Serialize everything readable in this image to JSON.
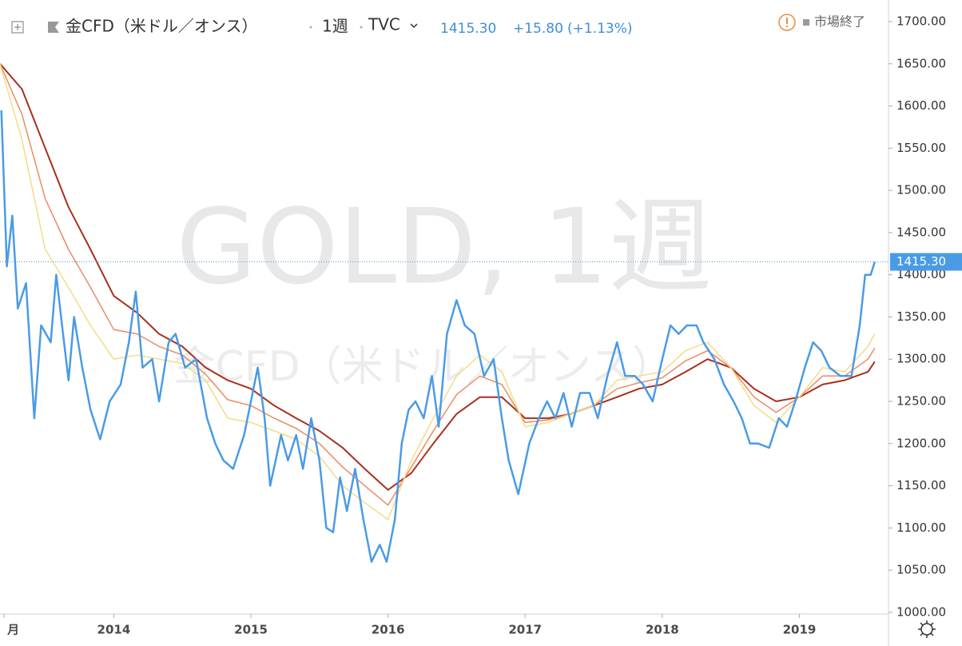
{
  "header": {
    "symbol": "金CFD（米ドル／オンス）",
    "interval": "1週",
    "exchange": "TVC",
    "price": "1415.30",
    "change": "+15.80",
    "change_pct": "(+1.13%)",
    "status": "市場終了"
  },
  "watermark": {
    "title": "GOLD, 1週",
    "subtitle": "金CFD（米ドル／オンス）"
  },
  "chart_data": {
    "type": "line",
    "xlim": [
      2013.17,
      2019.65
    ],
    "ylim": [
      998,
      1725.6
    ],
    "xticks": [
      {
        "value": 2013.2,
        "label": "月"
      },
      2014,
      2015,
      2016,
      2017,
      2018,
      2019
    ],
    "yticks": [
      {
        "value": 1000,
        "label": "1000.00"
      },
      {
        "value": 1050,
        "label": "1050.00"
      },
      {
        "value": 1100,
        "label": "1100.00"
      },
      {
        "value": 1150,
        "label": "1150.00"
      },
      {
        "value": 1200,
        "label": "1200.00"
      },
      {
        "value": 1250,
        "label": "1250.00"
      },
      {
        "value": 1300,
        "label": "1300.00"
      },
      {
        "value": 1350,
        "label": "1350.00"
      },
      {
        "value": 1400,
        "label": "1400.00"
      },
      {
        "value": 1450,
        "label": "1450.00"
      },
      {
        "value": 1500,
        "label": "1500.00"
      },
      {
        "value": 1550,
        "label": "1550.00"
      },
      {
        "value": 1600,
        "label": "1600.00"
      },
      {
        "value": 1650,
        "label": "1650.00"
      },
      {
        "value": 1700,
        "label": "1700.00"
      }
    ],
    "last_price": {
      "value": 1415.3,
      "label": "1415.30",
      "color": "#4a9be6"
    },
    "series": [
      {
        "color": "#a8301c",
        "width": 2,
        "x": [
          2013.17,
          2013.33,
          2013.5,
          2013.67,
          2013.83,
          2014.0,
          2014.17,
          2014.33,
          2014.5,
          2014.67,
          2014.83,
          2015.0,
          2015.17,
          2015.33,
          2015.5,
          2015.67,
          2015.83,
          2016.0,
          2016.17,
          2016.33,
          2016.5,
          2016.67,
          2016.83,
          2017.0,
          2017.17,
          2017.33,
          2017.5,
          2017.67,
          2017.83,
          2018.0,
          2018.17,
          2018.33,
          2018.5,
          2018.67,
          2018.83,
          2019.0,
          2019.17,
          2019.33,
          2019.5,
          2019.55
        ],
        "values": [
          1650,
          1620,
          1550,
          1480,
          1430,
          1375,
          1355,
          1330,
          1315,
          1290,
          1275,
          1265,
          1245,
          1230,
          1215,
          1195,
          1170,
          1145,
          1165,
          1200,
          1235,
          1255,
          1255,
          1230,
          1230,
          1235,
          1245,
          1255,
          1265,
          1270,
          1285,
          1300,
          1290,
          1265,
          1250,
          1255,
          1270,
          1275,
          1285,
          1297
        ]
      },
      {
        "color": "#ec8a64",
        "width": 1.5,
        "x": [
          2013.17,
          2013.33,
          2013.5,
          2013.67,
          2013.83,
          2014.0,
          2014.17,
          2014.33,
          2014.5,
          2014.67,
          2014.83,
          2015.0,
          2015.17,
          2015.33,
          2015.5,
          2015.67,
          2015.83,
          2016.0,
          2016.17,
          2016.33,
          2016.5,
          2016.67,
          2016.83,
          2017.0,
          2017.17,
          2017.33,
          2017.5,
          2017.67,
          2017.83,
          2018.0,
          2018.17,
          2018.33,
          2018.5,
          2018.67,
          2018.83,
          2019.0,
          2019.17,
          2019.33,
          2019.5,
          2019.55
        ],
        "values": [
          1650,
          1590,
          1490,
          1430,
          1385,
          1335,
          1330,
          1315,
          1305,
          1282,
          1252,
          1245,
          1230,
          1218,
          1200,
          1172,
          1150,
          1127,
          1172,
          1215,
          1258,
          1280,
          1270,
          1225,
          1228,
          1235,
          1245,
          1265,
          1272,
          1278,
          1298,
          1310,
          1290,
          1255,
          1237,
          1255,
          1280,
          1280,
          1300,
          1313
        ]
      },
      {
        "color": "#f3dc86",
        "width": 1.5,
        "x": [
          2013.17,
          2013.33,
          2013.5,
          2013.67,
          2013.83,
          2014.0,
          2014.17,
          2014.33,
          2014.5,
          2014.67,
          2014.83,
          2015.0,
          2015.17,
          2015.33,
          2015.5,
          2015.67,
          2015.83,
          2016.0,
          2016.17,
          2016.33,
          2016.5,
          2016.67,
          2016.83,
          2017.0,
          2017.17,
          2017.33,
          2017.5,
          2017.67,
          2017.83,
          2018.0,
          2018.17,
          2018.33,
          2018.5,
          2018.67,
          2018.83,
          2019.0,
          2019.17,
          2019.33,
          2019.5,
          2019.55
        ],
        "values": [
          1650,
          1560,
          1430,
          1385,
          1340,
          1300,
          1305,
          1300,
          1295,
          1275,
          1230,
          1225,
          1215,
          1205,
          1185,
          1150,
          1130,
          1110,
          1180,
          1230,
          1280,
          1305,
          1285,
          1220,
          1225,
          1235,
          1245,
          1275,
          1280,
          1285,
          1310,
          1320,
          1290,
          1245,
          1225,
          1255,
          1290,
          1285,
          1315,
          1330
        ]
      },
      {
        "color": "#4a9be6",
        "width": 2.5,
        "x": [
          2013.18,
          2013.22,
          2013.26,
          2013.3,
          2013.36,
          2013.42,
          2013.47,
          2013.54,
          2013.58,
          2013.63,
          2013.67,
          2013.71,
          2013.77,
          2013.83,
          2013.9,
          2013.97,
          2014.05,
          2014.11,
          2014.16,
          2014.21,
          2014.28,
          2014.33,
          2014.4,
          2014.45,
          2014.52,
          2014.6,
          2014.68,
          2014.74,
          2014.8,
          2014.87,
          2014.95,
          2015.05,
          2015.1,
          2015.14,
          2015.22,
          2015.27,
          2015.33,
          2015.38,
          2015.44,
          2015.5,
          2015.55,
          2015.6,
          2015.65,
          2015.7,
          2015.76,
          2015.82,
          2015.88,
          2015.94,
          2015.99,
          2016.05,
          2016.1,
          2016.15,
          2016.2,
          2016.26,
          2016.32,
          2016.37,
          2016.43,
          2016.5,
          2016.56,
          2016.63,
          2016.7,
          2016.77,
          2016.83,
          2016.88,
          2016.95,
          2017.03,
          2017.1,
          2017.16,
          2017.22,
          2017.28,
          2017.34,
          2017.4,
          2017.47,
          2017.53,
          2017.6,
          2017.67,
          2017.73,
          2017.8,
          2017.86,
          2017.93,
          2018.0,
          2018.06,
          2018.12,
          2018.18,
          2018.25,
          2018.3,
          2018.38,
          2018.45,
          2018.52,
          2018.58,
          2018.64,
          2018.7,
          2018.78,
          2018.85,
          2018.91,
          2018.97,
          2019.04,
          2019.1,
          2019.16,
          2019.22,
          2019.3,
          2019.38,
          2019.44,
          2019.48,
          2019.52,
          2019.55
        ],
        "values": [
          1595,
          1410,
          1470,
          1360,
          1390,
          1230,
          1340,
          1320,
          1400,
          1330,
          1275,
          1350,
          1290,
          1240,
          1205,
          1250,
          1270,
          1320,
          1380,
          1290,
          1300,
          1250,
          1320,
          1330,
          1290,
          1300,
          1230,
          1200,
          1180,
          1170,
          1210,
          1290,
          1230,
          1150,
          1210,
          1180,
          1210,
          1170,
          1230,
          1180,
          1100,
          1095,
          1160,
          1120,
          1170,
          1110,
          1060,
          1080,
          1060,
          1110,
          1200,
          1240,
          1250,
          1230,
          1280,
          1220,
          1330,
          1370,
          1340,
          1330,
          1280,
          1300,
          1230,
          1180,
          1140,
          1200,
          1230,
          1250,
          1230,
          1260,
          1220,
          1260,
          1260,
          1230,
          1280,
          1320,
          1280,
          1280,
          1270,
          1250,
          1300,
          1340,
          1330,
          1340,
          1340,
          1320,
          1300,
          1270,
          1250,
          1230,
          1200,
          1200,
          1195,
          1230,
          1220,
          1250,
          1290,
          1320,
          1310,
          1290,
          1280,
          1280,
          1340,
          1400,
          1400,
          1415.3
        ]
      }
    ]
  }
}
